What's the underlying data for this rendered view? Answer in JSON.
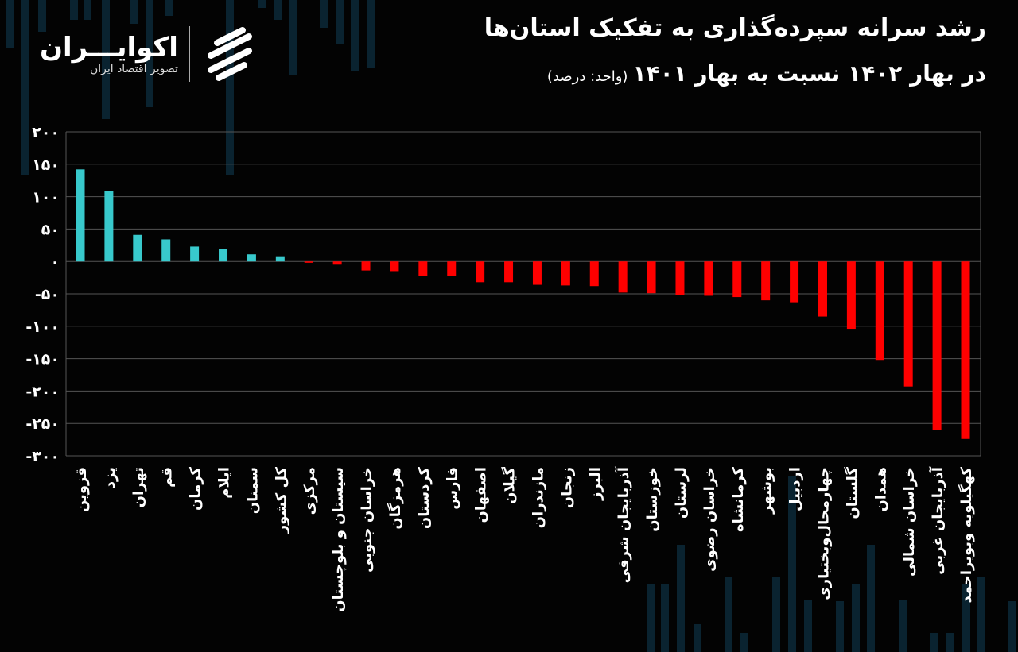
{
  "header": {
    "title_line1": "رشد سرانه سپرده‌گذاری به تفکیک استان‌ها",
    "title_line2": "در بهار ۱۴۰۲ نسبت به بهار ۱۴۰۱",
    "unit_note": "(واحد: درصد)"
  },
  "logo": {
    "name": "اکوایـــران",
    "tagline": "تصویر اقتصاد ایران"
  },
  "colors": {
    "background": "#030303",
    "positive": "#38c9cc",
    "negative": "#ff0000",
    "grid": "#555555"
  },
  "chart_data": {
    "type": "bar",
    "title": "رشد سرانه سپرده‌گذاری به تفکیک استان‌ها در بهار ۱۴۰۲ نسبت به بهار ۱۴۰۱",
    "ylim": [
      -300,
      200
    ],
    "yticks": [
      200,
      150,
      100,
      50,
      0,
      -50,
      -100,
      -150,
      -200,
      -250,
      -300
    ],
    "ytick_labels": [
      "۲۰۰",
      "۱۵۰",
      "۱۰۰",
      "۵۰",
      "۰",
      "-۵۰",
      "-۱۰۰",
      "-۱۵۰",
      "-۲۰۰",
      "-۲۵۰",
      "-۳۰۰"
    ],
    "grid": true,
    "categories": [
      "قزوین",
      "یزد",
      "تهران",
      "قم",
      "کرمان",
      "ایلام",
      "سمنان",
      "کل کشور",
      "مرکزی",
      "سیستان و بلوچستان",
      "خراسان جنوبی",
      "هرمزگان",
      "کردستان",
      "فارس",
      "اصفهان",
      "گیلان",
      "مازندران",
      "زنجان",
      "البرز",
      "آذربایجان شرقی",
      "خوزستان",
      "لرستان",
      "خراسان رضوی",
      "کرمانشاه",
      "بوشهر",
      "اردبیل",
      "چهارمحال‌وبختیاری",
      "گلستان",
      "همدان",
      "خراسان شمالی",
      "آذربایجان غربی",
      "کهگیلویه وبویراحمد"
    ],
    "values": [
      142,
      109,
      41,
      34,
      23,
      19,
      11,
      8,
      -2,
      -5,
      -14,
      -15,
      -23,
      -23,
      -32,
      -32,
      -36,
      -37,
      -38,
      -48,
      -49,
      -52,
      -53,
      -55,
      -60,
      -63,
      -85,
      -104,
      -152,
      -193,
      -260,
      -274
    ]
  }
}
